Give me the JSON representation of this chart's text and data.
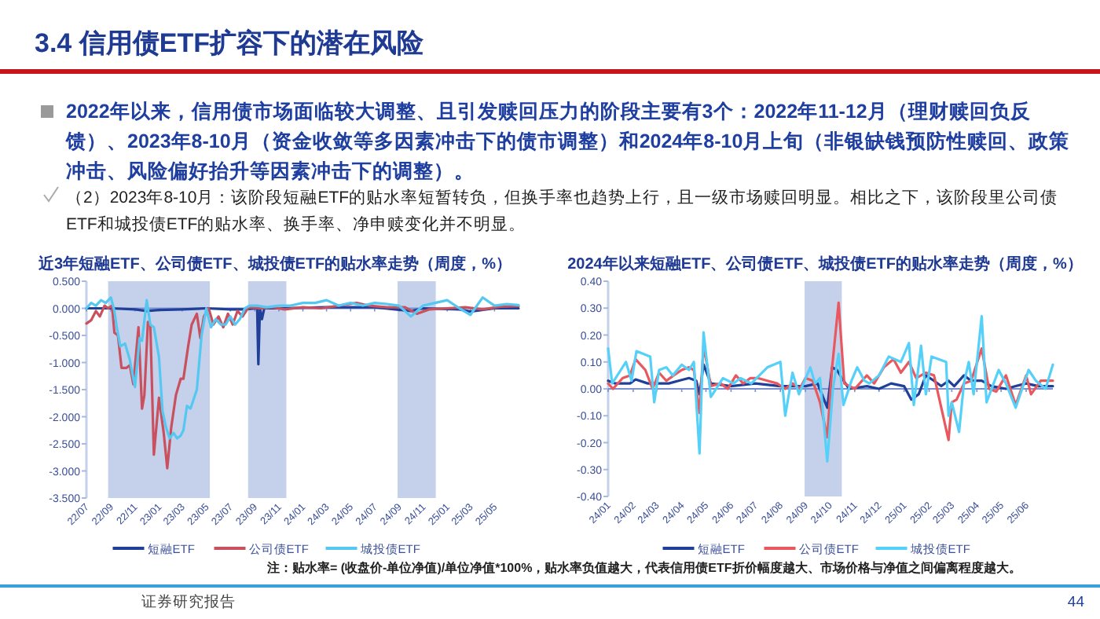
{
  "chart_data": [
    {
      "type": "other",
      "title": "3.4 信用债ETF扩容下的潜在风险",
      "annotations": [
        "2022年以来，信用债市场面临较大调整、且引发赎回压力的阶段主要有3个：2022年11-12月（理财赎回负反馈）、2023年8-10月（资金收敛等多因素冲击下的债市调整）和2024年8-10月上旬（非银缺钱预防性赎回、政策冲击、风险偏好抬升等因素冲击下的调整）。",
        "（2）2023年8-10月：该阶段短融ETF的贴水率短暂转负，但换手率也趋势上行，且一级市场赎回明显。相比之下，该阶段里公司债ETF和城投债ETF的贴水率、换手率、净申赎变化并不明显。",
        "注：贴水率= (收盘价-单位净值)/单位净值*100%，贴水率负值越大，代表信用债ETF折价幅度越大、市场价格与净值之间偏离程度越大。",
        "证券研究报告",
        "44"
      ]
    },
    {
      "type": "line",
      "title": "近3年短融ETF、公司债ETF、城投债ETF的贴水率走势（周度，%）",
      "legend": "bottom",
      "xlim": [
        "2022-07",
        "2025-07"
      ],
      "ylim": [
        -3.5,
        0.5
      ],
      "xticks": [
        {
          "value": "2022-07",
          "label": "22/07"
        },
        {
          "value": "2022-09",
          "label": "22/09"
        },
        {
          "value": "2022-11",
          "label": "22/11"
        },
        {
          "value": "2023-01",
          "label": "23/01"
        },
        {
          "value": "2023-03",
          "label": "23/03"
        },
        {
          "value": "2023-05",
          "label": "23/05"
        },
        {
          "value": "2023-07",
          "label": "23/07"
        },
        {
          "value": "2023-09",
          "label": "23/09"
        },
        {
          "value": "2023-11",
          "label": "23/11"
        },
        {
          "value": "2024-01",
          "label": "24/01"
        },
        {
          "value": "2024-03",
          "label": "24/03"
        },
        {
          "value": "2024-05",
          "label": "24/05"
        },
        {
          "value": "2024-07",
          "label": "24/07"
        },
        {
          "value": "2024-09",
          "label": "24/09"
        },
        {
          "value": "2024-11",
          "label": "24/11"
        },
        {
          "value": "2025-01",
          "label": "25/01"
        },
        {
          "value": "2025-03",
          "label": "25/03"
        },
        {
          "value": "2025-05",
          "label": "25/05"
        }
      ],
      "yticks": [
        {
          "value": 0.5,
          "label": "0.500"
        },
        {
          "value": 0,
          "label": "0.000"
        },
        {
          "value": -0.5,
          "label": "-0.500"
        },
        {
          "value": -1,
          "label": "-1.000"
        },
        {
          "value": -1.5,
          "label": "-1.500"
        },
        {
          "value": -2,
          "label": "-2.000"
        },
        {
          "value": -2.5,
          "label": "-2.500"
        },
        {
          "value": -3,
          "label": "-3.000"
        },
        {
          "value": -3.5,
          "label": "-3.500"
        }
      ],
      "ref_lines": [
        {
          "axis": "y",
          "value": 0,
          "color": "#7a8fcf"
        }
      ],
      "bands": [
        {
          "axis": "x",
          "from": "2022-08-25",
          "to": "2023-05-10",
          "color": "#c5d0ea"
        },
        {
          "axis": "x",
          "from": "2023-08-15",
          "to": "2023-11-20",
          "color": "#c5d0ea"
        },
        {
          "axis": "x",
          "from": "2024-08-28",
          "to": "2024-12-03",
          "color": "#c5d0ea"
        }
      ],
      "series": [
        {
          "name": "短融ETF",
          "color": "#1f3f99",
          "x": [
            "2022-07-01",
            "2022-09-01",
            "2022-11-01",
            "2022-12-01",
            "2023-01-01",
            "2023-03-01",
            "2023-05-01",
            "2023-07-01",
            "2023-08-01",
            "2023-09-07",
            "2023-09-10",
            "2023-09-14",
            "2023-09-19",
            "2023-09-25",
            "2023-11-01",
            "2024-03-01",
            "2024-07-01",
            "2024-10-01",
            "2024-11-01",
            "2025-02-01",
            "2025-03-01",
            "2025-05-01",
            "2025-07-01"
          ],
          "values": [
            0.0,
            0.0,
            -0.02,
            -0.05,
            -0.03,
            -0.02,
            0.0,
            -0.02,
            -0.02,
            0.0,
            -1.03,
            0.0,
            -0.2,
            0.0,
            0.0,
            0.02,
            0.02,
            -0.05,
            0.0,
            -0.02,
            -0.06,
            0.0,
            0.0
          ]
        },
        {
          "name": "公司债ETF",
          "color": "#c9505f",
          "x": [
            "2022-07-01",
            "2022-07-13",
            "2022-07-25",
            "2022-08-04",
            "2022-08-16",
            "2022-08-25",
            "2022-09-04",
            "2022-09-10",
            "2022-09-19",
            "2022-09-28",
            "2022-10-10",
            "2022-10-19",
            "2022-10-28",
            "2022-11-10",
            "2022-11-19",
            "2022-11-25",
            "2022-12-04",
            "2022-12-10",
            "2022-12-19",
            "2023-01-01",
            "2023-01-13",
            "2023-01-22",
            "2023-02-01",
            "2023-02-13",
            "2023-02-25",
            "2023-03-04",
            "2023-03-16",
            "2023-03-25",
            "2023-04-07",
            "2023-04-16",
            "2023-04-25",
            "2023-05-07",
            "2023-05-19",
            "2023-06-01",
            "2023-06-13",
            "2023-06-25",
            "2023-07-07",
            "2023-07-19",
            "2023-08-01",
            "2023-08-16",
            "2023-09-16",
            "2023-10-16",
            "2023-11-16",
            "2024-01-01",
            "2024-02-16",
            "2024-04-01",
            "2024-05-16",
            "2024-06-16",
            "2024-08-01",
            "2024-09-16",
            "2024-10-16",
            "2024-11-16",
            "2025-01-01",
            "2025-02-16",
            "2025-04-01",
            "2025-05-16",
            "2025-07-01"
          ],
          "values": [
            -0.28,
            -0.22,
            -0.05,
            -0.15,
            0.05,
            0.0,
            0.05,
            -0.45,
            -0.5,
            -1.1,
            -1.1,
            -1.05,
            -1.4,
            -0.35,
            -1.85,
            -1.6,
            -0.25,
            -0.3,
            -2.7,
            -1.65,
            -2.3,
            -2.95,
            -2.2,
            -1.6,
            -1.3,
            -1.3,
            -0.7,
            -0.3,
            -0.1,
            -0.55,
            -0.15,
            0.0,
            -0.3,
            -0.15,
            -0.35,
            -0.1,
            -0.3,
            -0.05,
            -0.15,
            0.02,
            0.0,
            0.02,
            -0.02,
            0.02,
            0.0,
            0.05,
            0.1,
            0.05,
            0.02,
            0.02,
            -0.1,
            -0.02,
            0.0,
            0.02,
            -0.02,
            0.03,
            0.04
          ]
        },
        {
          "name": "城投债ETF",
          "color": "#55c8f2",
          "x": [
            "2022-07-01",
            "2022-07-13",
            "2022-07-25",
            "2022-08-07",
            "2022-08-19",
            "2022-09-01",
            "2022-09-10",
            "2022-09-16",
            "2022-09-25",
            "2022-10-07",
            "2022-10-19",
            "2022-11-01",
            "2022-11-13",
            "2022-11-19",
            "2022-12-01",
            "2022-12-10",
            "2022-12-19",
            "2023-01-01",
            "2023-01-10",
            "2023-01-19",
            "2023-01-28",
            "2023-02-07",
            "2023-02-16",
            "2023-02-25",
            "2023-03-04",
            "2023-03-13",
            "2023-03-22",
            "2023-04-07",
            "2023-04-19",
            "2023-05-01",
            "2023-05-13",
            "2023-05-25",
            "2023-06-07",
            "2023-06-19",
            "2023-07-01",
            "2023-07-13",
            "2023-07-25",
            "2023-08-07",
            "2023-08-19",
            "2023-09-07",
            "2023-10-01",
            "2023-11-01",
            "2023-12-01",
            "2024-01-01",
            "2024-02-01",
            "2024-03-01",
            "2024-04-01",
            "2024-05-01",
            "2024-06-01",
            "2024-07-01",
            "2024-08-01",
            "2024-09-01",
            "2024-10-01",
            "2024-11-01",
            "2024-12-01",
            "2025-01-01",
            "2025-02-01",
            "2025-03-01",
            "2025-04-01",
            "2025-05-01",
            "2025-06-01",
            "2025-07-01"
          ],
          "values": [
            0.0,
            0.1,
            0.05,
            0.15,
            0.1,
            0.2,
            -0.05,
            -0.35,
            -0.7,
            -0.65,
            -0.95,
            -1.45,
            -0.55,
            -0.6,
            0.15,
            -0.3,
            -0.35,
            -0.9,
            -1.9,
            -2.2,
            -2.4,
            -2.3,
            -2.4,
            -2.35,
            -2.25,
            -1.8,
            -1.85,
            -1.5,
            -0.5,
            0.0,
            -0.35,
            -0.2,
            -0.3,
            -0.3,
            -0.15,
            -0.3,
            -0.2,
            0.0,
            0.05,
            0.05,
            0.02,
            0.05,
            0.05,
            0.1,
            0.1,
            0.15,
            0.05,
            0.1,
            0.05,
            0.1,
            0.08,
            0.05,
            -0.15,
            0.05,
            0.1,
            0.15,
            0.0,
            -0.12,
            0.2,
            0.05,
            0.08,
            0.06
          ]
        }
      ]
    },
    {
      "type": "line",
      "title": "2024年以来短融ETF、公司债ETF、城投债ETF的贴水率走势（周度，%）",
      "legend": "bottom",
      "xlim": [
        "2024-01",
        "2025-07-04"
      ],
      "ylim": [
        -0.4,
        0.4
      ],
      "xticks": [
        {
          "value": "2024-01",
          "label": "24/01"
        },
        {
          "value": "2024-02",
          "label": "24/02"
        },
        {
          "value": "2024-03",
          "label": "24/03"
        },
        {
          "value": "2024-04",
          "label": "24/04"
        },
        {
          "value": "2024-05",
          "label": "24/05"
        },
        {
          "value": "2024-06",
          "label": "24/06"
        },
        {
          "value": "2024-07",
          "label": "24/07"
        },
        {
          "value": "2024-08",
          "label": "24/08"
        },
        {
          "value": "2024-09",
          "label": "24/09"
        },
        {
          "value": "2024-10",
          "label": "24/10"
        },
        {
          "value": "2024-11",
          "label": "24/11"
        },
        {
          "value": "2024-12",
          "label": "24/12"
        },
        {
          "value": "2025-01",
          "label": "25/01"
        },
        {
          "value": "2025-02",
          "label": "25/02"
        },
        {
          "value": "2025-03",
          "label": "25/03"
        },
        {
          "value": "2025-04",
          "label": "25/04"
        },
        {
          "value": "2025-05",
          "label": "25/05"
        },
        {
          "value": "2025-06",
          "label": "25/06"
        }
      ],
      "yticks": [
        {
          "value": 0.4,
          "label": "0.40"
        },
        {
          "value": 0.3,
          "label": "0.30"
        },
        {
          "value": 0.2,
          "label": "0.20"
        },
        {
          "value": 0.1,
          "label": "0.10"
        },
        {
          "value": 0,
          "label": "0.00"
        },
        {
          "value": -0.1,
          "label": "-0.10"
        },
        {
          "value": -0.2,
          "label": "-0.20"
        },
        {
          "value": -0.3,
          "label": "-0.30"
        },
        {
          "value": -0.4,
          "label": "-0.40"
        }
      ],
      "ref_lines": [
        {
          "axis": "y",
          "value": 0,
          "color": "#7a8fcf"
        }
      ],
      "bands": [
        {
          "axis": "x",
          "from": "2024-08-31",
          "to": "2024-10-16",
          "color": "#c5d0ea"
        }
      ],
      "series": [
        {
          "name": "短融ETF",
          "color": "#1f3f99",
          "x": [
            "2024-01-01",
            "2024-01-10",
            "2024-01-28",
            "2024-02-04",
            "2024-02-19",
            "2024-03-01",
            "2024-03-16",
            "2024-03-28",
            "2024-04-10",
            "2024-04-19",
            "2024-04-23",
            "2024-04-28",
            "2024-05-07",
            "2024-06-01",
            "2024-07-01",
            "2024-08-01",
            "2024-09-01",
            "2024-09-16",
            "2024-09-28",
            "2024-10-04",
            "2024-10-10",
            "2024-10-16",
            "2024-10-25",
            "2024-11-16",
            "2024-12-01",
            "2024-12-16",
            "2025-01-01",
            "2025-01-10",
            "2025-01-19",
            "2025-01-28",
            "2025-02-07",
            "2025-02-16",
            "2025-02-25",
            "2025-03-04",
            "2025-03-16",
            "2025-03-25",
            "2025-04-07",
            "2025-04-19",
            "2025-05-07",
            "2025-05-19",
            "2025-06-01",
            "2025-06-16",
            "2025-07-04"
          ],
          "values": [
            0.03,
            0.02,
            0.02,
            0.035,
            0.02,
            0.02,
            0.02,
            0.03,
            0.04,
            0.03,
            -0.02,
            0.09,
            0.02,
            0.01,
            0.02,
            0.01,
            0.01,
            0.02,
            -0.07,
            0.08,
            0.07,
            0.04,
            0.0,
            0.01,
            0.0,
            0.02,
            0.01,
            -0.04,
            -0.02,
            0.05,
            0.03,
            0.01,
            0.03,
            0.01,
            0.05,
            0.03,
            0.03,
            0.01,
            0.0,
            0.01,
            0.02,
            0.01,
            0.01
          ]
        },
        {
          "name": "公司债ETF",
          "color": "#e8585e",
          "x": [
            "2024-01-01",
            "2024-01-07",
            "2024-01-19",
            "2024-01-28",
            "2024-02-04",
            "2024-02-16",
            "2024-02-25",
            "2024-03-04",
            "2024-03-13",
            "2024-03-22",
            "2024-04-01",
            "2024-04-10",
            "2024-04-16",
            "2024-04-23",
            "2024-04-28",
            "2024-05-07",
            "2024-05-19",
            "2024-05-28",
            "2024-06-07",
            "2024-06-16",
            "2024-06-25",
            "2024-07-04",
            "2024-07-16",
            "2024-07-28",
            "2024-08-07",
            "2024-08-16",
            "2024-08-25",
            "2024-09-01",
            "2024-09-10",
            "2024-09-19",
            "2024-09-28",
            "2024-10-04",
            "2024-10-12",
            "2024-10-19",
            "2024-11-01",
            "2024-11-16",
            "2024-11-25",
            "2024-12-07",
            "2024-12-19",
            "2024-12-28",
            "2025-01-07",
            "2025-01-16",
            "2025-01-28",
            "2025-02-07",
            "2025-02-25",
            "2025-03-01",
            "2025-03-07",
            "2025-03-16",
            "2025-03-25",
            "2025-04-07",
            "2025-04-16",
            "2025-04-25",
            "2025-05-07",
            "2025-05-19",
            "2025-06-01",
            "2025-06-07",
            "2025-06-19",
            "2025-07-04"
          ],
          "values": [
            0.02,
            0.0,
            0.04,
            0.05,
            0.11,
            0.07,
            0.0,
            0.06,
            0.03,
            0.05,
            0.07,
            0.08,
            0.07,
            -0.09,
            0.16,
            0.01,
            0.02,
            0.0,
            0.05,
            0.02,
            0.04,
            0.04,
            0.03,
            0.02,
            0.0,
            0.02,
            0.0,
            0.04,
            0.03,
            -0.05,
            -0.18,
            0.08,
            0.32,
            0.02,
            0.0,
            0.05,
            0.02,
            0.08,
            0.11,
            0.06,
            0.1,
            0.04,
            0.06,
            0.05,
            -0.19,
            -0.05,
            -0.04,
            0.02,
            0.03,
            0.15,
            0.0,
            -0.01,
            0.05,
            -0.06,
            0.05,
            -0.02,
            0.03,
            0.03
          ]
        },
        {
          "name": "城投债ETF",
          "color": "#55d0f8",
          "x": [
            "2024-01-01",
            "2024-01-06",
            "2024-01-23",
            "2024-01-30",
            "2024-02-05",
            "2024-02-22",
            "2024-02-27",
            "2024-03-04",
            "2024-03-13",
            "2024-03-21",
            "2024-04-01",
            "2024-04-10",
            "2024-04-16",
            "2024-04-23",
            "2024-04-28",
            "2024-05-07",
            "2024-05-22",
            "2024-06-04",
            "2024-06-13",
            "2024-06-26",
            "2024-07-16",
            "2024-08-01",
            "2024-08-07",
            "2024-08-16",
            "2024-08-24",
            "2024-09-07",
            "2024-09-13",
            "2024-09-19",
            "2024-09-28",
            "2024-10-05",
            "2024-10-12",
            "2024-10-18",
            "2024-10-28",
            "2024-11-04",
            "2024-11-13",
            "2024-11-19",
            "2024-12-01",
            "2024-12-13",
            "2024-12-28",
            "2025-01-07",
            "2025-01-13",
            "2025-01-22",
            "2025-01-28",
            "2025-02-04",
            "2025-02-22",
            "2025-02-25",
            "2025-03-01",
            "2025-03-10",
            "2025-03-16",
            "2025-03-22",
            "2025-03-28",
            "2025-04-07",
            "2025-04-13",
            "2025-04-28",
            "2025-05-07",
            "2025-05-19",
            "2025-06-04",
            "2025-06-13",
            "2025-06-25",
            "2025-07-04"
          ],
          "values": [
            0.15,
            0.02,
            0.1,
            0.03,
            0.14,
            0.12,
            -0.05,
            0.07,
            0.08,
            0.05,
            0.09,
            0.07,
            0.1,
            -0.24,
            0.21,
            -0.03,
            0.04,
            0.02,
            0.04,
            0.02,
            0.08,
            0.1,
            -0.1,
            0.06,
            -0.02,
            0.08,
            0.02,
            0.04,
            -0.27,
            0.0,
            0.13,
            -0.06,
            0.03,
            0.08,
            0.03,
            0.02,
            0.05,
            0.12,
            0.1,
            0.17,
            -0.06,
            0.16,
            -0.02,
            0.12,
            0.1,
            -0.1,
            -0.05,
            -0.16,
            0.02,
            0.1,
            -0.02,
            0.27,
            -0.05,
            0.07,
            0.02,
            -0.07,
            0.07,
            0.03,
            0.0,
            0.09
          ]
        }
      ]
    }
  ]
}
